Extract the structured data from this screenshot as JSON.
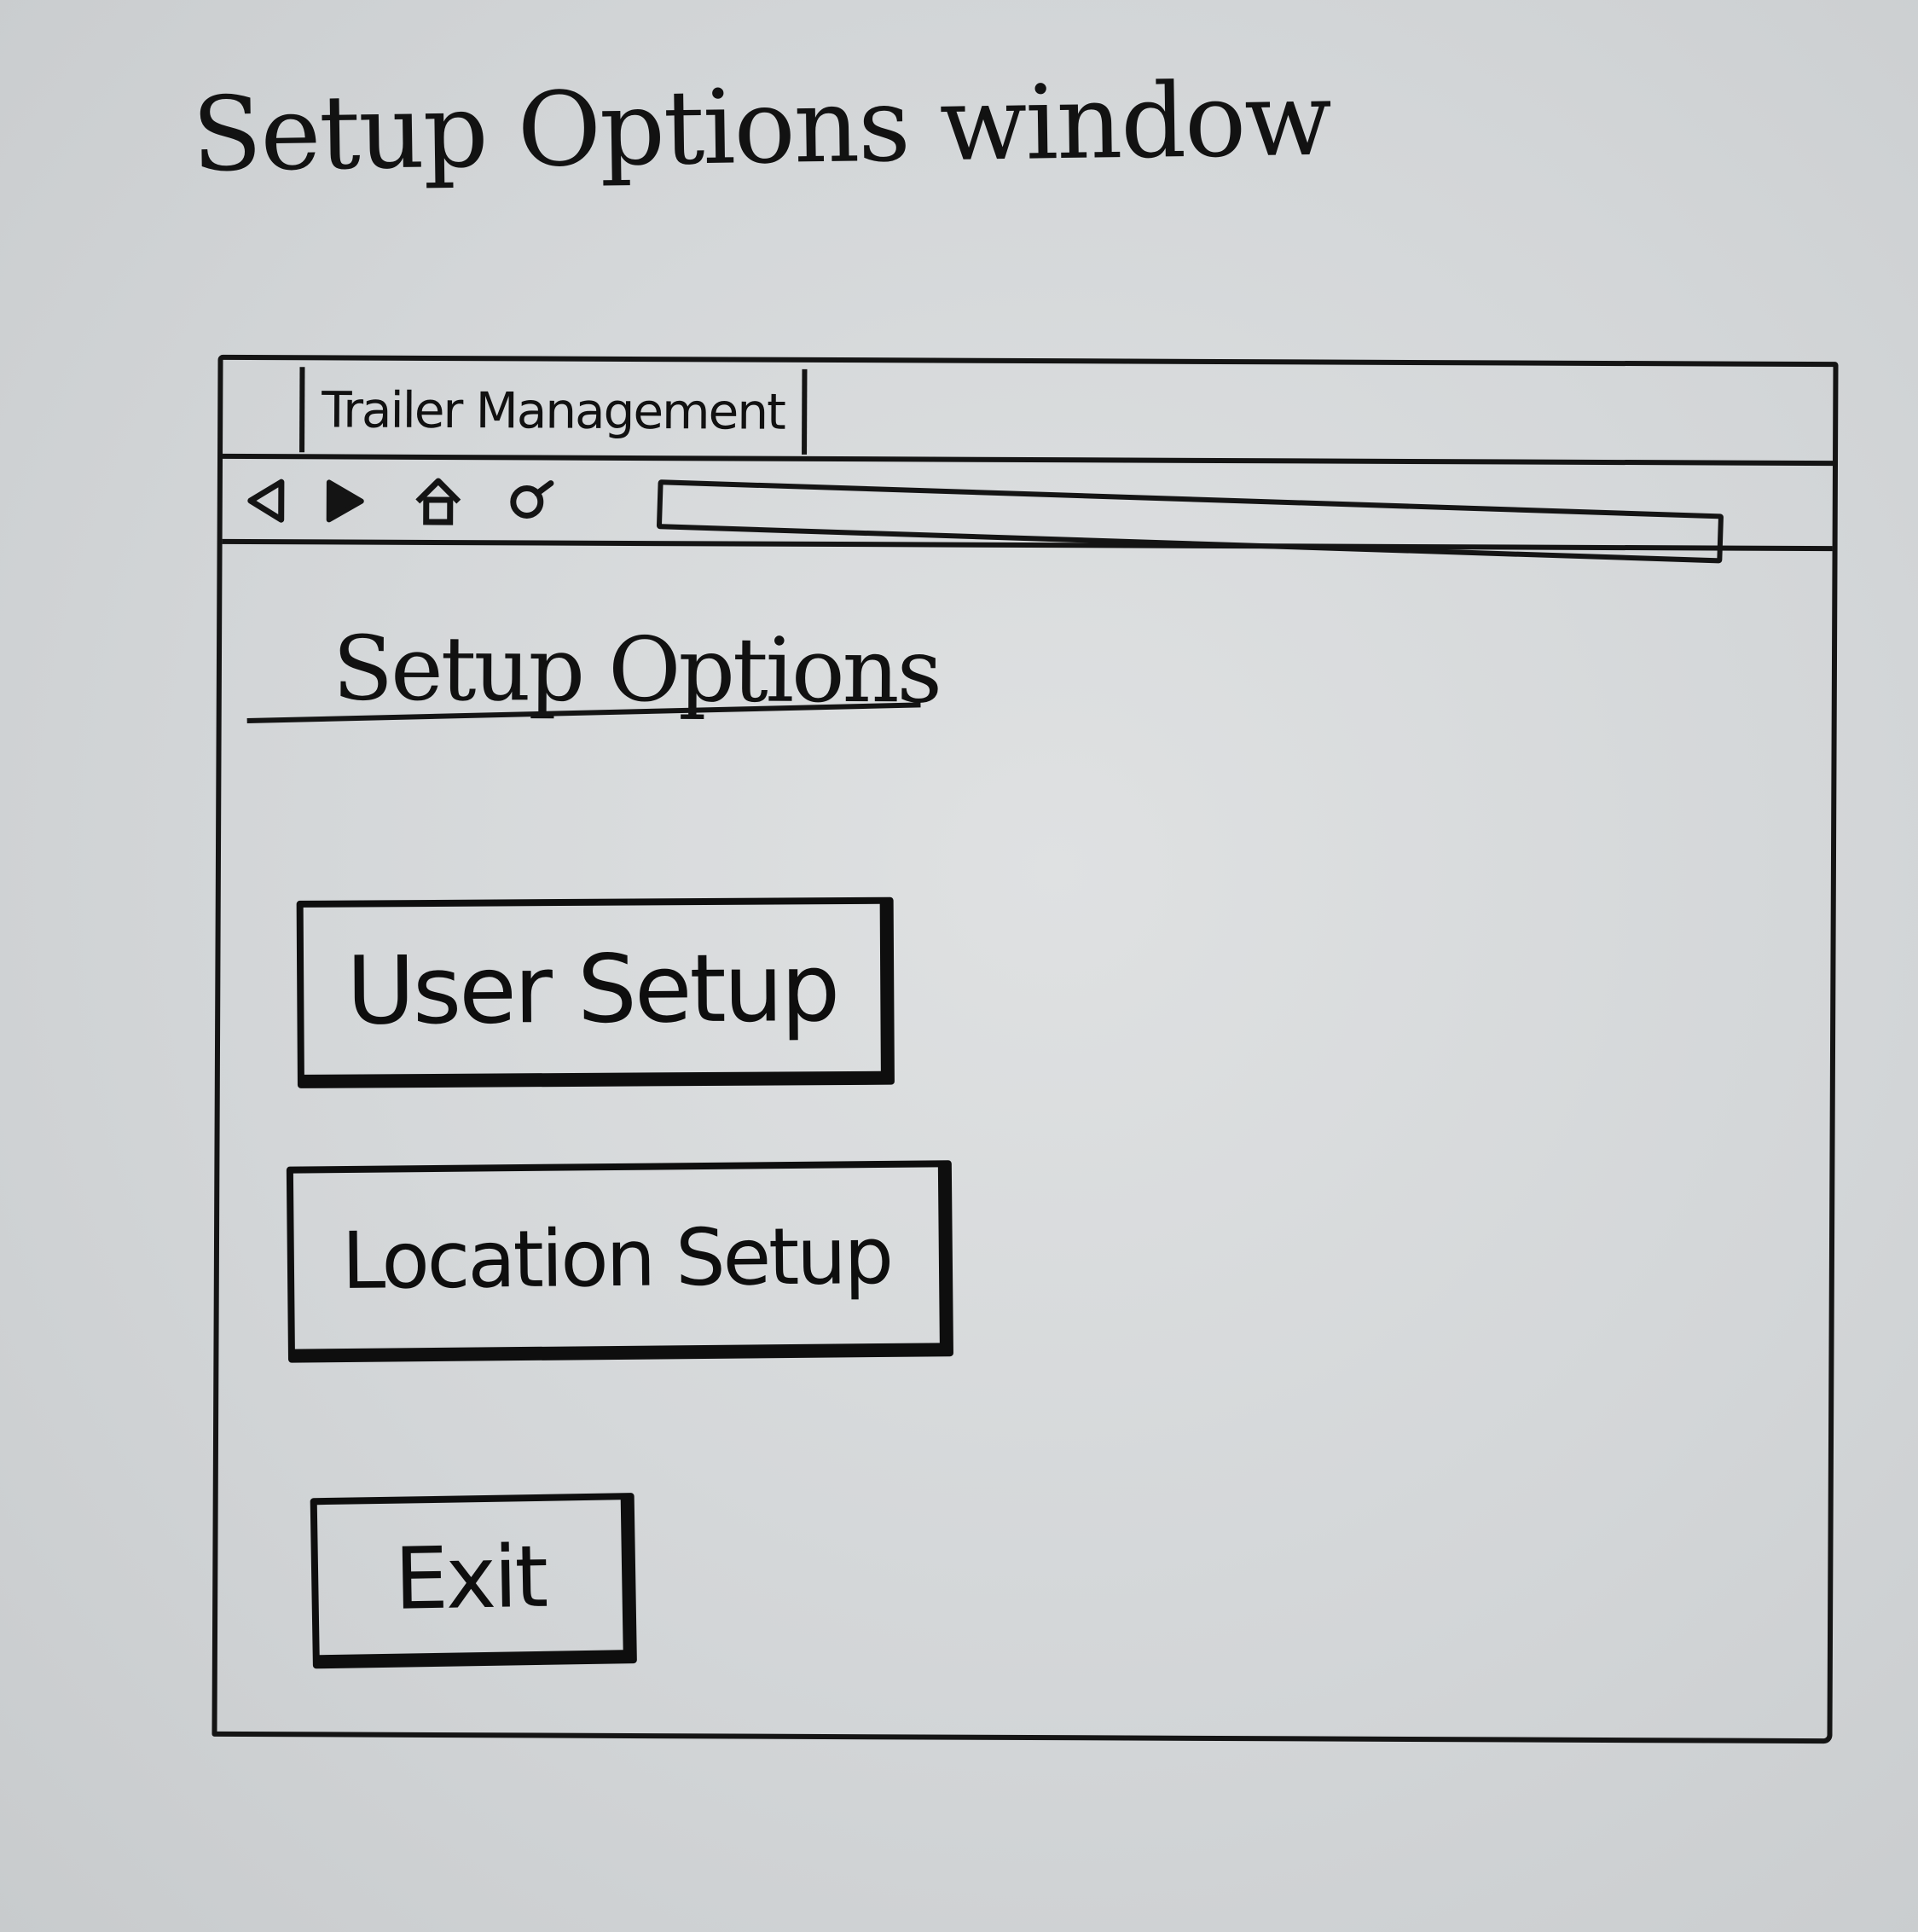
{
  "caption": "Setup Options window",
  "window": {
    "tab_label": "Trailer Management",
    "nav": {
      "back_icon": "triangle-left-icon",
      "forward_icon": "triangle-right-icon",
      "home_icon": "house-icon",
      "search_icon": "magnifier-icon"
    },
    "address_value": ""
  },
  "page": {
    "title": "Setup Options",
    "buttons": {
      "user_setup": "User Setup",
      "location_setup": "Location Setup",
      "exit": "Exit"
    }
  },
  "colors": {
    "ink": "#141414",
    "paper": "#d3d6d8"
  }
}
